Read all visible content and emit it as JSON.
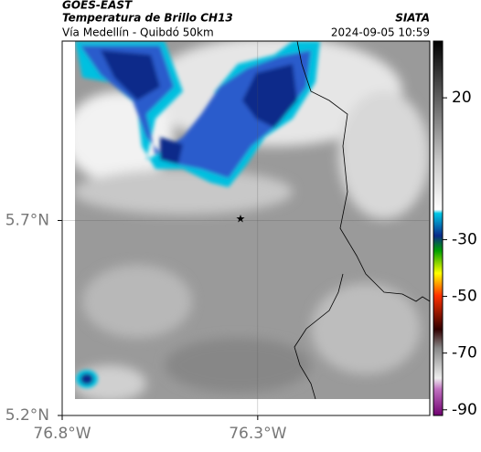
{
  "header": {
    "source": "GOES-EAST",
    "title": "Temperatura de Brillo CH13",
    "subtitle": "Vía Medellín - Quibdó 50km",
    "agency": "SIATA",
    "timestamp": "2024-09-05 10:59"
  },
  "map": {
    "lat_range": [
      5.2,
      6.16
    ],
    "lon_range": [
      -76.8,
      -75.86
    ],
    "lat_ticks": [
      {
        "value": 5.7,
        "label": "5.7°N"
      },
      {
        "value": 5.2,
        "label": "5.2°N"
      }
    ],
    "lon_ticks": [
      {
        "value": -76.8,
        "label": "76.8°W"
      },
      {
        "value": -76.3,
        "label": "76.3°W"
      }
    ]
  },
  "colorbar": {
    "range": [
      40,
      -92
    ],
    "ticks": [
      20,
      -30,
      -50,
      -70,
      -90
    ]
  }
}
